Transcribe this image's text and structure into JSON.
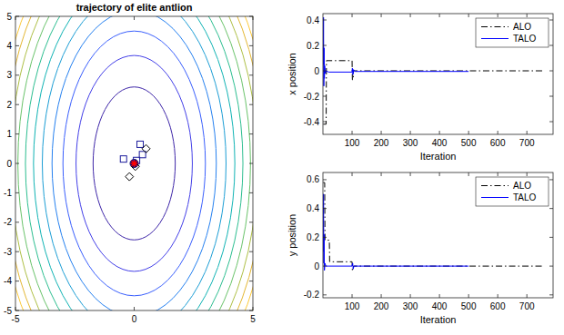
{
  "chart_data": [
    {
      "type": "contour",
      "title": "trajectory of elite antlion",
      "xlim": [
        -5,
        5
      ],
      "ylim": [
        -5,
        5
      ],
      "xticks": [
        -5,
        0,
        5
      ],
      "yticks": [
        -5,
        -4,
        -3,
        -2,
        -1,
        0,
        1,
        2,
        3,
        4,
        5
      ],
      "grid": false,
      "center": [
        0,
        0
      ],
      "contours": [
        {
          "rx": 1.73,
          "ry": 2.6
        },
        {
          "rx": 2.45,
          "ry": 3.67
        },
        {
          "rx": 3.0,
          "ry": 4.5
        },
        {
          "rx": 3.46,
          "ry": 5.2
        },
        {
          "rx": 3.87,
          "ry": 5.81
        },
        {
          "rx": 4.24,
          "ry": 6.36
        },
        {
          "rx": 4.58,
          "ry": 6.87
        },
        {
          "rx": 4.9,
          "ry": 7.35
        },
        {
          "rx": 5.2,
          "ry": 7.8
        },
        {
          "rx": 5.48,
          "ry": 8.22
        },
        {
          "rx": 5.74,
          "ry": 8.62
        },
        {
          "rx": 6.0,
          "ry": 9.0
        }
      ],
      "colors": [
        "#3e26a8",
        "#4440e8",
        "#3a5ffd",
        "#2681f0",
        "#1c9ed5",
        "#10b3b4",
        "#2cbe90",
        "#6ac36b",
        "#aebf45",
        "#e4b734",
        "#fcc93a",
        "#f9e51f"
      ],
      "series": [
        {
          "type": "scatter",
          "marker": "circle",
          "color": "#0a0a6e",
          "x": [
            0
          ],
          "values": [
            0
          ]
        },
        {
          "type": "scatter",
          "marker": "square",
          "color": "#1c1c9c",
          "x": [
            -0.45,
            0.25,
            0.35,
            0.1
          ],
          "values": [
            0.15,
            0.65,
            0.3,
            0.1
          ]
        },
        {
          "type": "scatter",
          "marker": "diamond",
          "color": "#000000",
          "x": [
            0.5,
            -0.2,
            0.05
          ],
          "values": [
            0.5,
            -0.45,
            -0.1
          ]
        },
        {
          "type": "scatter",
          "marker": "asterisk",
          "color": "#ff0000",
          "x": [
            0
          ],
          "values": [
            0
          ]
        }
      ]
    },
    {
      "type": "line",
      "xlabel": "Iteration",
      "ylabel": "x position",
      "xlim": [
        0,
        790
      ],
      "ylim": [
        -0.5,
        0.45
      ],
      "xticks": [
        100,
        200,
        300,
        400,
        500,
        600,
        700
      ],
      "yticks": [
        -0.4,
        -0.2,
        0,
        0.2,
        0.4
      ],
      "grid": false,
      "legend": "northeast",
      "series": [
        {
          "name": "ALO",
          "color": "#000000",
          "line_style": "dashdot",
          "x": [
            1,
            11,
            12,
            100,
            101,
            104,
            105,
            760
          ],
          "values": [
            -0.42,
            -0.42,
            0.08,
            0.08,
            -0.07,
            -0.07,
            0,
            0
          ]
        },
        {
          "name": "TALO",
          "color": "#0000ff",
          "line_style": "solid",
          "x": [
            1,
            2,
            3,
            4,
            5,
            6,
            8,
            10,
            20,
            100,
            101,
            103,
            105,
            110,
            500
          ],
          "values": [
            0.05,
            0.42,
            -0.12,
            0.18,
            -0.06,
            0.04,
            -0.02,
            0,
            -0.01,
            -0.01,
            0.02,
            -0.03,
            0.01,
            -0.005,
            -0.005
          ]
        }
      ]
    },
    {
      "type": "line",
      "xlabel": "Iteration",
      "ylabel": "y position",
      "xlim": [
        0,
        790
      ],
      "ylim": [
        -0.22,
        0.65
      ],
      "xticks": [
        100,
        200,
        300,
        400,
        500,
        600,
        700
      ],
      "yticks": [
        -0.2,
        0,
        0.2,
        0.4,
        0.6
      ],
      "grid": false,
      "legend": "northeast",
      "series": [
        {
          "name": "ALO",
          "color": "#000000",
          "line_style": "dashdot",
          "x": [
            1,
            6,
            7,
            22,
            23,
            100,
            101,
            104,
            105,
            760
          ],
          "values": [
            0.58,
            0.58,
            0.18,
            0.18,
            0.03,
            0.03,
            -0.03,
            -0.03,
            0,
            0
          ]
        },
        {
          "name": "TALO",
          "color": "#0000ff",
          "line_style": "solid",
          "x": [
            1,
            2,
            3,
            4,
            5,
            7,
            10,
            20,
            100,
            102,
            104,
            106,
            500
          ],
          "values": [
            0.1,
            0.5,
            0.02,
            0.22,
            -0.03,
            0.02,
            0,
            0,
            0,
            0.02,
            -0.02,
            0,
            0
          ]
        }
      ]
    }
  ]
}
